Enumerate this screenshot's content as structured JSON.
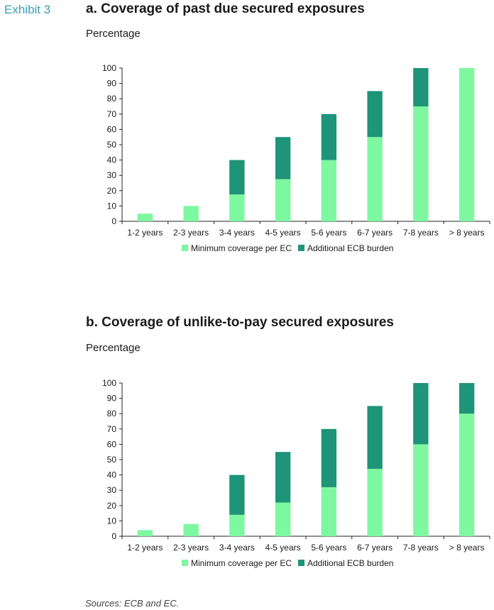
{
  "exhibit_label": "Exhibit 3",
  "source": "Sources: ECB and EC.",
  "colors": {
    "minimum": "#7ef7a1",
    "additional": "#1e9478",
    "exhibit": "#3a9fb4"
  },
  "chart_data": [
    {
      "type": "bar",
      "stacked": true,
      "title": "a. Coverage of past due secured exposures",
      "ylabel": "Percentage",
      "ylim": [
        0,
        100
      ],
      "yticks": [
        0,
        10,
        20,
        30,
        40,
        50,
        60,
        70,
        80,
        90,
        100
      ],
      "grid": false,
      "legend": "bottom",
      "categories": [
        "1-2 years",
        "2-3 years",
        "3-4 years",
        "4-5 years",
        "5-6 years",
        "6-7 years",
        "7-8 years",
        "> 8 years"
      ],
      "series": [
        {
          "name": "Minimum coverage per EC",
          "values": [
            5,
            10,
            17.5,
            27.5,
            40,
            55,
            75,
            100
          ]
        },
        {
          "name": "Additional ECB burden",
          "values": [
            0,
            0,
            22.5,
            27.5,
            30,
            30,
            25,
            0
          ]
        }
      ]
    },
    {
      "type": "bar",
      "stacked": true,
      "title": "b. Coverage of unlike-to-pay secured exposures",
      "ylabel": "Percentage",
      "ylim": [
        0,
        100
      ],
      "yticks": [
        0,
        10,
        20,
        30,
        40,
        50,
        60,
        70,
        80,
        90,
        100
      ],
      "grid": false,
      "legend": "bottom",
      "categories": [
        "1-2 years",
        "2-3 years",
        "3-4 years",
        "4-5 years",
        "5-6 years",
        "6-7 years",
        "7-8 years",
        "> 8 years"
      ],
      "series": [
        {
          "name": "Minimum coverage per EC",
          "values": [
            4,
            8,
            14,
            22,
            32,
            44,
            60,
            80
          ]
        },
        {
          "name": "Additional ECB burden",
          "values": [
            0,
            0,
            26,
            33,
            38,
            41,
            40,
            20
          ]
        }
      ]
    }
  ]
}
